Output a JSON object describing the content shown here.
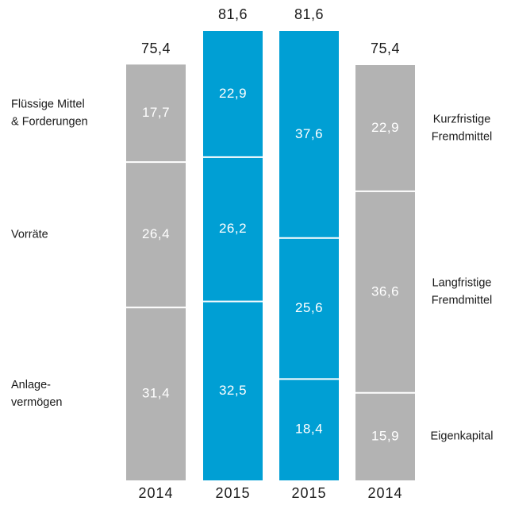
{
  "chart_data": {
    "type": "stacked-bar",
    "left_labels": [
      [
        "Anlage-",
        "vermögen"
      ],
      [
        "Vorräte"
      ],
      [
        "Flüssige Mittel",
        "& Forderungen"
      ]
    ],
    "right_labels": [
      [
        "Eigenkapital"
      ],
      [
        "Langfristige",
        "Fremdmittel"
      ],
      [
        "Kurzfristige",
        "Fremdmittel"
      ]
    ],
    "bars": [
      {
        "category": "2014",
        "color": "#b3b3b3",
        "total": 75.4,
        "total_label": "75,4",
        "values": [
          31.4,
          26.4,
          17.7
        ],
        "value_labels": [
          "31,4",
          "26,4",
          "17,7"
        ]
      },
      {
        "category": "2015",
        "color": "#009fd4",
        "total": 81.6,
        "total_label": "81,6",
        "values": [
          32.5,
          26.2,
          22.9
        ],
        "value_labels": [
          "32,5",
          "26,2",
          "22,9"
        ]
      },
      {
        "category": "2015",
        "color": "#009fd4",
        "total": 81.6,
        "total_label": "81,6",
        "values": [
          18.4,
          25.6,
          37.6
        ],
        "value_labels": [
          "18,4",
          "25,6",
          "37,6"
        ]
      },
      {
        "category": "2014",
        "color": "#b3b3b3",
        "total": 75.4,
        "total_label": "75,4",
        "values": [
          15.9,
          36.6,
          22.9
        ],
        "value_labels": [
          "15,9",
          "36,6",
          "22,9"
        ]
      }
    ]
  }
}
